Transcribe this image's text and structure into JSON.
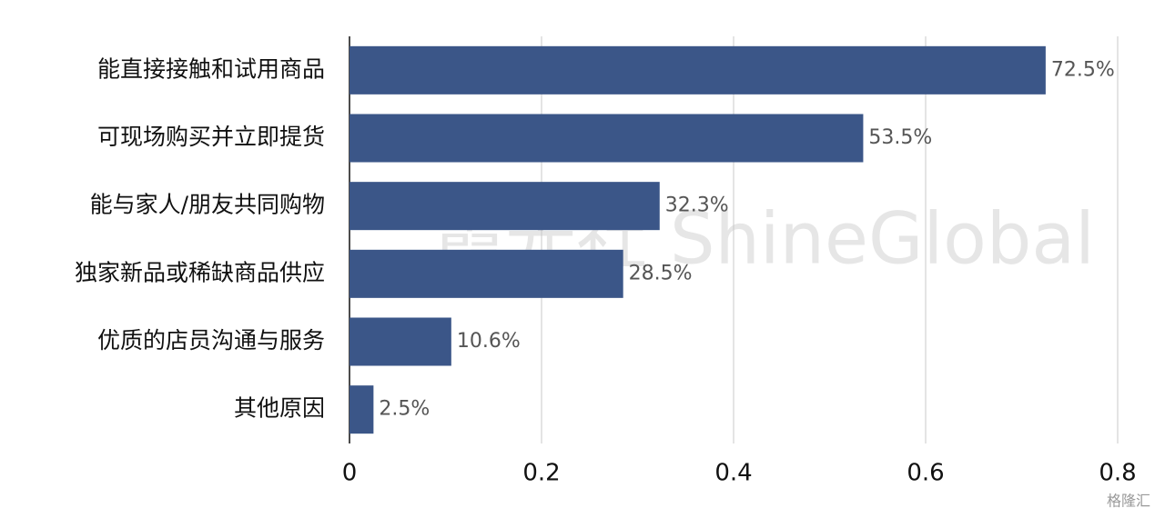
{
  "chart_data": {
    "type": "bar",
    "orientation": "horizontal",
    "categories": [
      "能直接接触和试用商品",
      "可现场购买并立即提货",
      "能与家人/朋友共同购物",
      "独家新品或稀缺商品供应",
      "优质的店员沟通与服务",
      "其他原因"
    ],
    "values": [
      0.725,
      0.535,
      0.323,
      0.285,
      0.106,
      0.025
    ],
    "value_labels": [
      "72.5%",
      "53.5%",
      "32.3%",
      "28.5%",
      "10.6%",
      "2.5%"
    ],
    "color": "#3b5688",
    "xlim": [
      0,
      0.8
    ],
    "xticks": [
      0,
      0.2,
      0.4,
      0.6,
      0.8
    ],
    "grid": true,
    "watermark": "霞光社 ShineGlobal",
    "source_logo": "格隆汇"
  }
}
